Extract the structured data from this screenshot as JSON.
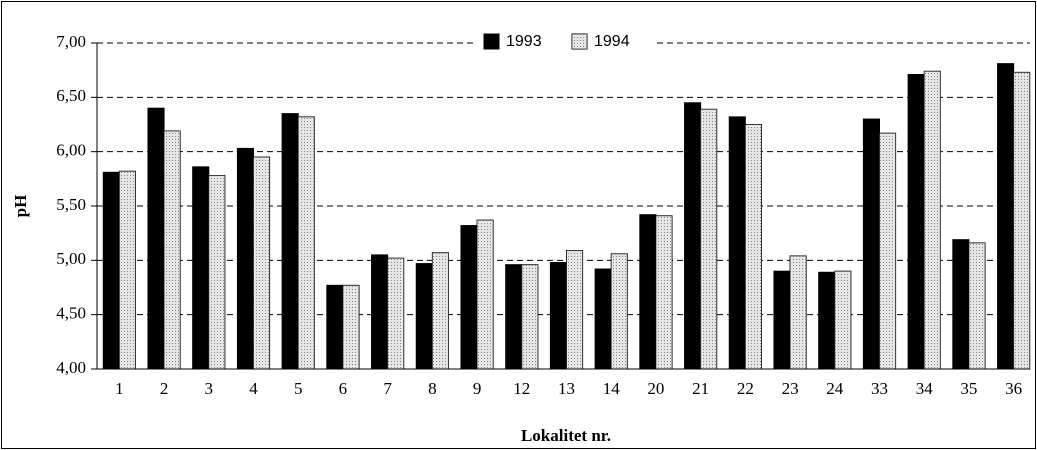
{
  "chart_data": {
    "type": "bar",
    "y_label": "pH",
    "x_label": "Lokalitet nr.",
    "categories": [
      "1",
      "2",
      "3",
      "4",
      "5",
      "6",
      "7",
      "8",
      "9",
      "12",
      "13",
      "14",
      "20",
      "21",
      "22",
      "23",
      "24",
      "33",
      "34",
      "35",
      "36"
    ],
    "series": [
      {
        "name": "1993",
        "color": "#000000",
        "values": [
          5.81,
          6.4,
          5.86,
          6.03,
          6.35,
          4.77,
          5.05,
          4.97,
          5.32,
          4.96,
          4.98,
          4.92,
          5.42,
          6.45,
          6.32,
          4.9,
          4.89,
          6.3,
          6.71,
          5.19,
          6.81
        ]
      },
      {
        "name": "1994",
        "color": "#d9d9d9",
        "values": [
          5.82,
          6.19,
          5.78,
          5.95,
          6.32,
          4.77,
          5.02,
          5.07,
          5.37,
          4.96,
          5.09,
          5.06,
          5.41,
          6.39,
          6.25,
          5.04,
          4.9,
          6.17,
          6.74,
          5.16,
          6.73
        ]
      }
    ],
    "ylim": [
      4,
      7
    ],
    "yticks": [
      {
        "value": 4,
        "label": "4,00"
      },
      {
        "value": 4.5,
        "label": "4,50"
      },
      {
        "value": 5,
        "label": "5,00"
      },
      {
        "value": 5.5,
        "label": "5,50"
      },
      {
        "value": 6,
        "label": "6,00"
      },
      {
        "value": 6.5,
        "label": "6,50"
      },
      {
        "value": 7,
        "label": "7,00"
      }
    ],
    "grid": true,
    "legend": "top"
  }
}
